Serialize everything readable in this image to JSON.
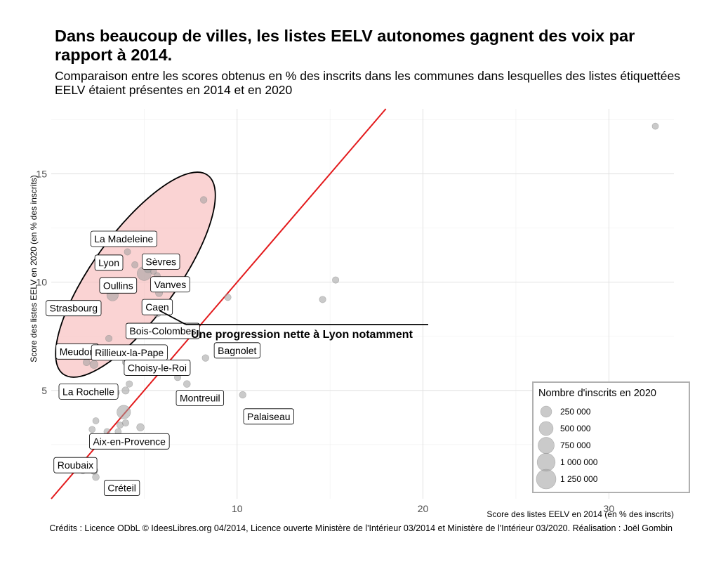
{
  "title": "Dans beaucoup de villes, les listes EELV autonomes gagnent des voix par rapport à 2014.",
  "subtitle": "Comparaison entre les scores obtenus en % des inscrits dans les communes dans lesquelles des listes étiquettées EELV étaient présentes en 2014 et en 2020",
  "caption": "Crédits : Licence ODbL © IdeesLibres.org 04/2014, Licence ouverte Ministère de l'Intérieur 03/2014 et Ministère de l'Intérieur 03/2020. Réalisation : Joël Gombin",
  "colors": {
    "diagonal": "#e31a1c",
    "ellipse_fill": "#f7b5b5",
    "ellipse_stroke": "#000000",
    "points": "#9e9e9e"
  },
  "chart_data": {
    "type": "scatter",
    "xlabel": "Score des listes EELV en 2014 (en % des inscrits)",
    "ylabel": "Score des listes EELV en 2020 (en % des inscrits)",
    "xlim": [
      0,
      33.5
    ],
    "ylim": [
      0,
      18
    ],
    "x_ticks": [
      10,
      20,
      30
    ],
    "y_ticks": [
      5,
      10,
      15
    ],
    "grid": true,
    "reference_line": "y = x",
    "annotation": "Une progression nette à Lyon notamment",
    "points": [
      {
        "x": 32.5,
        "y": 17.2,
        "size": 25000
      },
      {
        "x": 8.2,
        "y": 13.8,
        "size": 35000
      },
      {
        "x": 15.3,
        "y": 10.1,
        "size": 30000
      },
      {
        "x": 14.6,
        "y": 9.2,
        "size": 30000
      },
      {
        "x": 9.5,
        "y": 9.3,
        "size": 30000
      },
      {
        "x": 4.1,
        "y": 11.4,
        "size": 28000
      },
      {
        "x": 5.0,
        "y": 10.4,
        "size": 515000
      },
      {
        "x": 4.5,
        "y": 10.8,
        "size": 30000
      },
      {
        "x": 5.5,
        "y": 10.5,
        "size": 25000
      },
      {
        "x": 5.2,
        "y": 10.6,
        "size": 50000
      },
      {
        "x": 5.7,
        "y": 10.3,
        "size": 25000
      },
      {
        "x": 5.8,
        "y": 9.5,
        "size": 48000
      },
      {
        "x": 3.3,
        "y": 9.4,
        "size": 280000
      },
      {
        "x": 5.7,
        "y": 8.6,
        "size": 110000
      },
      {
        "x": 6.0,
        "y": 8.9,
        "size": 30000
      },
      {
        "x": 3.1,
        "y": 7.4,
        "size": 30000
      },
      {
        "x": 8.3,
        "y": 6.5,
        "size": 35000
      },
      {
        "x": 4.0,
        "y": 6.3,
        "size": 30000
      },
      {
        "x": 1.9,
        "y": 6.3,
        "size": 40000
      },
      {
        "x": 2.3,
        "y": 6.2,
        "size": 80000
      },
      {
        "x": 6.3,
        "y": 5.9,
        "size": 30000
      },
      {
        "x": 6.8,
        "y": 5.6,
        "size": 28000
      },
      {
        "x": 7.3,
        "y": 5.3,
        "size": 40000
      },
      {
        "x": 4.2,
        "y": 5.3,
        "size": 30000
      },
      {
        "x": 4.0,
        "y": 5.0,
        "size": 50000
      },
      {
        "x": 3.5,
        "y": 4.9,
        "size": 25000
      },
      {
        "x": 10.3,
        "y": 4.8,
        "size": 35000
      },
      {
        "x": 8.0,
        "y": 4.7,
        "size": 30000
      },
      {
        "x": 3.9,
        "y": 4.0,
        "size": 470000
      },
      {
        "x": 3.7,
        "y": 3.4,
        "size": 28000
      },
      {
        "x": 4.0,
        "y": 3.5,
        "size": 30000
      },
      {
        "x": 4.8,
        "y": 3.3,
        "size": 60000
      },
      {
        "x": 2.4,
        "y": 3.6,
        "size": 25000
      },
      {
        "x": 2.2,
        "y": 3.2,
        "size": 25000
      },
      {
        "x": 3.6,
        "y": 3.1,
        "size": 25000
      },
      {
        "x": 3.0,
        "y": 3.1,
        "size": 25000
      },
      {
        "x": 1.7,
        "y": 1.3,
        "size": 25000
      },
      {
        "x": 2.3,
        "y": 1.3,
        "size": 60000
      },
      {
        "x": 2.4,
        "y": 1.0,
        "size": 40000
      },
      {
        "x": 1.0,
        "y": 1.7,
        "size": 25000
      }
    ],
    "labels": [
      {
        "text": "La Madeleine",
        "x": 3.9,
        "y": 12.0
      },
      {
        "text": "Lyon",
        "x": 3.1,
        "y": 10.9
      },
      {
        "text": "Sèvres",
        "x": 5.9,
        "y": 10.95
      },
      {
        "text": "Oullins",
        "x": 3.6,
        "y": 9.85
      },
      {
        "text": "Vanves",
        "x": 6.4,
        "y": 9.9
      },
      {
        "text": "Strasbourg",
        "x": 1.2,
        "y": 8.8
      },
      {
        "text": "Caen",
        "x": 5.7,
        "y": 8.85
      },
      {
        "text": "Bois-Colombes",
        "x": 6.0,
        "y": 7.75
      },
      {
        "text": "Meudon",
        "x": 1.4,
        "y": 6.8
      },
      {
        "text": "Rillieux-la-Pape",
        "x": 4.2,
        "y": 6.75
      },
      {
        "text": "Bagnolet",
        "x": 10.0,
        "y": 6.85
      },
      {
        "text": "Choisy-le-Roi",
        "x": 5.7,
        "y": 6.05
      },
      {
        "text": "La Rochelle",
        "x": 2.0,
        "y": 4.95
      },
      {
        "text": "Montreuil",
        "x": 8.0,
        "y": 4.65
      },
      {
        "text": "Palaiseau",
        "x": 11.7,
        "y": 3.8
      },
      {
        "text": "Aix-en-Provence",
        "x": 4.2,
        "y": 2.65
      },
      {
        "text": "Roubaix",
        "x": 1.3,
        "y": 1.55
      },
      {
        "text": "Créteil",
        "x": 3.8,
        "y": 0.5
      }
    ],
    "legend": {
      "title": "Nombre d'inscrits en 2020",
      "position": "bottom-right",
      "entries": [
        {
          "label": "250 000",
          "size": 250000
        },
        {
          "label": "500 000",
          "size": 500000
        },
        {
          "label": "750 000",
          "size": 750000
        },
        {
          "label": "1 000 000",
          "size": 1000000
        },
        {
          "label": "1 250 000",
          "size": 1250000
        }
      ]
    }
  }
}
